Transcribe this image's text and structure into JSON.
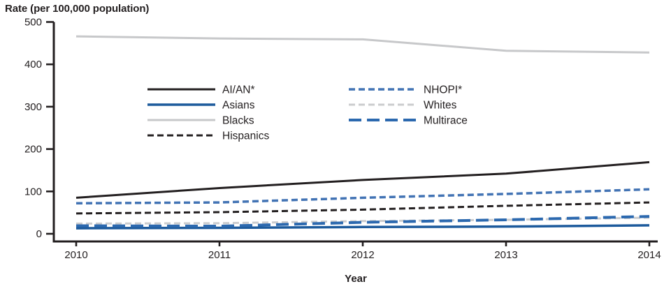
{
  "figure": {
    "y_axis_title": "Rate (per 100,000 population)",
    "x_axis_title": "Year"
  },
  "colors": {
    "axis": "#231f20",
    "text": "#231f20",
    "black_line": "#231f20",
    "asians_blue": "#1c5a9c",
    "nhopi_blue": "#4273b4",
    "multirace_blue": "#2c69af",
    "blacks_gray": "#c7c8ca",
    "whites_gray": "#cbccce"
  },
  "chart_data": {
    "type": "line",
    "title": "",
    "ylabel": "Rate (per 100,000 population)",
    "xlabel": "Year",
    "x": [
      2010,
      2011,
      2012,
      2013,
      2014
    ],
    "ylim": [
      0,
      500
    ],
    "yticks": [
      0,
      100,
      200,
      300,
      400,
      500
    ],
    "grid": false,
    "legend": {
      "position": "inside-upper-left",
      "columns": [
        [
          "AI/AN*",
          "Asians",
          "Blacks",
          "Hispanics"
        ],
        [
          "NHOPI*",
          "Whites",
          "Multirace"
        ]
      ]
    },
    "series": [
      {
        "name": "AI/AN*",
        "color": "#231f20",
        "style": "solid",
        "width": 3,
        "values": [
          85,
          108,
          127,
          142,
          169
        ]
      },
      {
        "name": "Asians",
        "color": "#1c5a9c",
        "style": "solid",
        "width": 3.5,
        "values": [
          13,
          14,
          16,
          17,
          20
        ]
      },
      {
        "name": "Blacks",
        "color": "#c7c8ca",
        "style": "solid",
        "width": 3,
        "values": [
          466,
          461,
          459,
          432,
          428
        ]
      },
      {
        "name": "Hispanics",
        "color": "#231f20",
        "style": "dashed",
        "width": 3,
        "values": [
          48,
          51,
          57,
          66,
          74
        ]
      },
      {
        "name": "NHOPI*",
        "color": "#4273b4",
        "style": "dashed",
        "width": 3.5,
        "values": [
          72,
          74,
          85,
          94,
          105
        ]
      },
      {
        "name": "Whites",
        "color": "#cbccce",
        "style": "dashed",
        "width": 3,
        "values": [
          24,
          25,
          30,
          33,
          38
        ]
      },
      {
        "name": "Multirace",
        "color": "#2c69af",
        "style": "long-dash",
        "width": 4,
        "values": [
          19,
          18,
          27,
          33,
          41
        ]
      }
    ]
  }
}
